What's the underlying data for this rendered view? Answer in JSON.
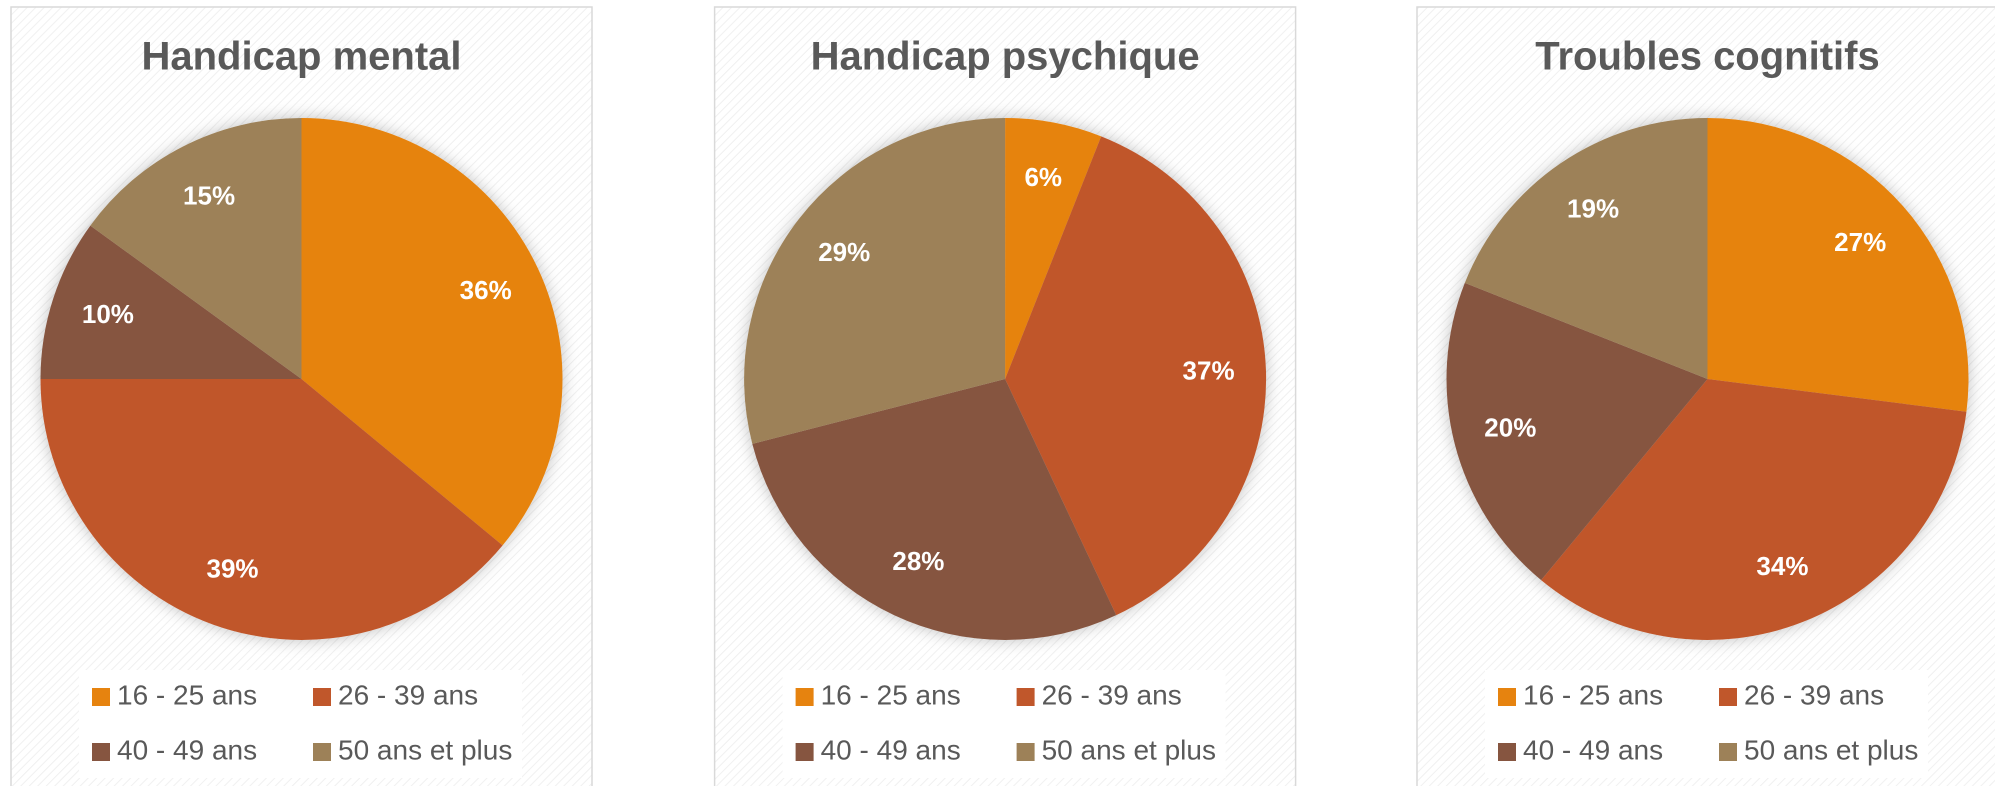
{
  "chart_data": [
    {
      "type": "pie",
      "title": "Handicap mental",
      "categories": [
        "16 - 25 ans",
        "26 - 39 ans",
        "40 - 49 ans",
        "50 ans et plus"
      ],
      "values": [
        36,
        39,
        10,
        15
      ],
      "value_labels": [
        "36%",
        "39%",
        "10%",
        "15%"
      ],
      "colors": [
        "#e6830f",
        "#c0572b",
        "#865540",
        "#9d8158"
      ]
    },
    {
      "type": "pie",
      "title": "Handicap psychique",
      "categories": [
        "16 - 25 ans",
        "26 - 39 ans",
        "40 - 49 ans",
        "50 ans et plus"
      ],
      "values": [
        6,
        37,
        28,
        29
      ],
      "value_labels": [
        "6%",
        "37%",
        "28%",
        "29%"
      ],
      "colors": [
        "#e6830f",
        "#c0572b",
        "#865540",
        "#9d8158"
      ]
    },
    {
      "type": "pie",
      "title": "Troubles cognitifs",
      "categories": [
        "16 - 25 ans",
        "26 - 39 ans",
        "40 - 49 ans",
        "50 ans et plus"
      ],
      "values": [
        27,
        34,
        20,
        19
      ],
      "value_labels": [
        "27%",
        "34%",
        "20%",
        "19%"
      ],
      "colors": [
        "#e6830f",
        "#c0572b",
        "#865540",
        "#9d8158"
      ]
    }
  ]
}
